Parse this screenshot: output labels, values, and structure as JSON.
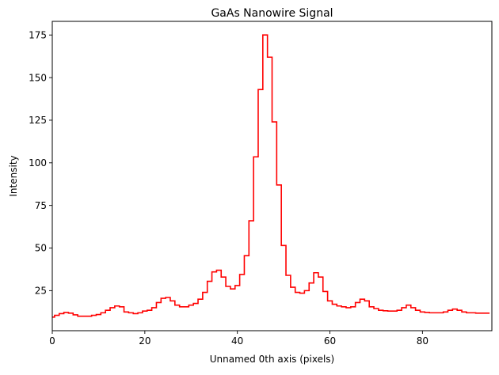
{
  "chart_data": {
    "type": "line",
    "style": "step",
    "title": "GaAs Nanowire Signal",
    "xlabel": "Unnamed 0th axis (pixels)",
    "ylabel": "Intensity",
    "xlim": [
      0,
      95
    ],
    "ylim": [
      1.5,
      183
    ],
    "x_ticks": [
      0,
      20,
      40,
      60,
      80
    ],
    "y_ticks": [
      25,
      50,
      75,
      100,
      125,
      150,
      175
    ],
    "grid": false,
    "line_color": "#ff0000",
    "series": [
      {
        "x": [
          0,
          1,
          2,
          3,
          4,
          5,
          6,
          7,
          8,
          9,
          10,
          11,
          12,
          13,
          14,
          15,
          16,
          17,
          18,
          19,
          20,
          21,
          22,
          23,
          24,
          25,
          26,
          27,
          28,
          29,
          30,
          31,
          32,
          33,
          34,
          35,
          36,
          37,
          38,
          39,
          40,
          41,
          42,
          43,
          44,
          45,
          46,
          47,
          48,
          49,
          50,
          51,
          52,
          53,
          54,
          55,
          56,
          57,
          58,
          59,
          60,
          61,
          62,
          63,
          64,
          65,
          66,
          67,
          68,
          69,
          70,
          71,
          72,
          73,
          74,
          75,
          76,
          77,
          78,
          79,
          80,
          81,
          82,
          83,
          84,
          85,
          86,
          87,
          88,
          89,
          90,
          91,
          92,
          93,
          94
        ],
        "values": [
          9.5,
          10.5,
          11.5,
          12.2,
          11.8,
          10.8,
          10,
          10,
          10,
          10.5,
          11,
          12,
          13.5,
          15,
          16,
          15.5,
          12.5,
          12,
          11.5,
          12,
          13,
          13.5,
          15,
          18,
          20.5,
          21,
          19,
          16.5,
          15.5,
          15.5,
          16.5,
          17.5,
          20,
          24,
          30.5,
          36,
          37,
          33,
          27.5,
          26,
          28,
          34.5,
          45.5,
          66,
          103.5,
          143,
          175,
          162,
          124,
          87,
          51.5,
          34,
          27,
          24,
          23.5,
          25,
          29.5,
          35.5,
          33,
          24.5,
          19,
          17,
          16,
          15.5,
          15,
          15.5,
          18,
          20,
          19,
          15.5,
          14.5,
          13.5,
          13.2,
          13,
          13,
          13.5,
          15,
          16.5,
          15,
          13.5,
          12.5,
          12.2,
          12,
          12,
          12,
          12.5,
          13.5,
          14.2,
          13.5,
          12.5,
          12,
          12,
          11.8,
          11.8,
          11.8
        ]
      }
    ]
  }
}
